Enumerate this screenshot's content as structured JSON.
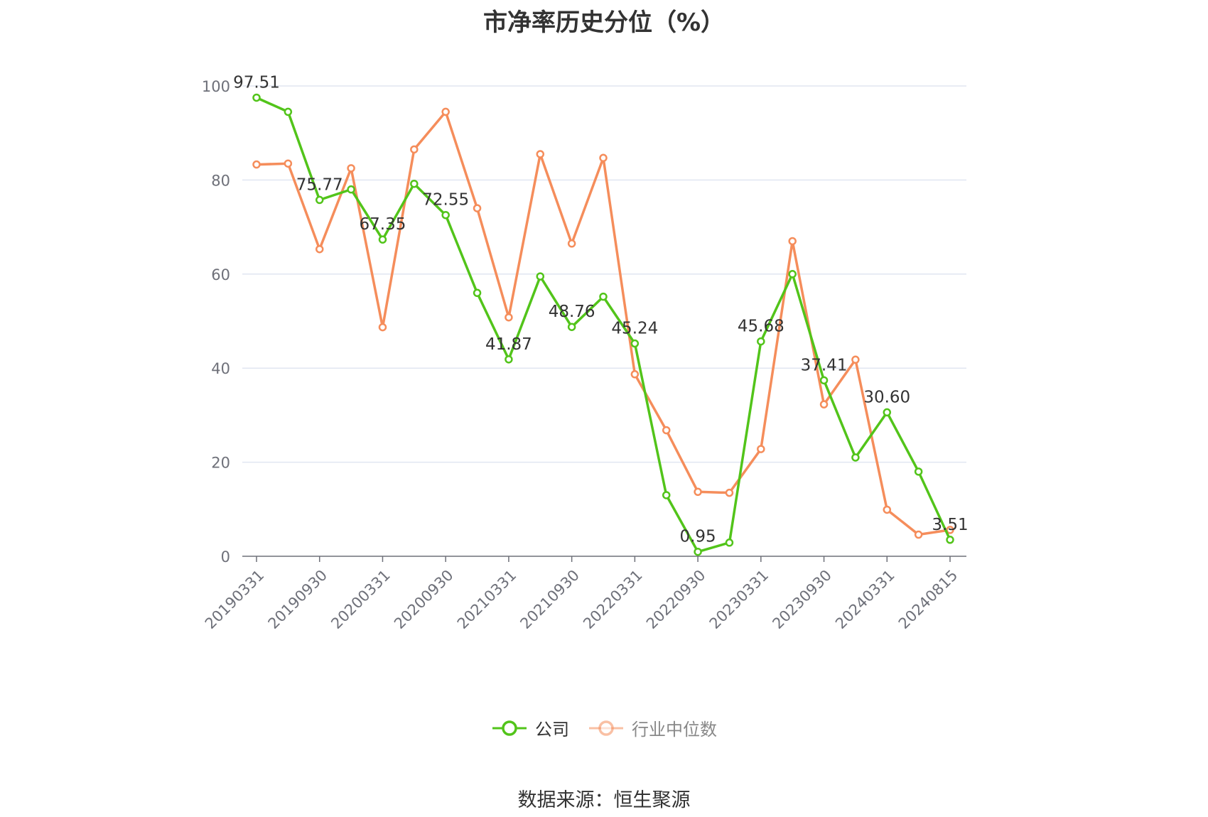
{
  "title": "市净率历史分位（%）",
  "source": "数据来源：恒生聚源",
  "colors": {
    "company": "#52c41a",
    "industry": "#f58d5b",
    "grid": "#e0e6f1",
    "axis": "#6e7079"
  },
  "legend": [
    {
      "label": "公司",
      "series": 0
    },
    {
      "label": "行业中位数",
      "series": 1
    }
  ],
  "chart_data": {
    "type": "line",
    "x_labels": [
      "20190331",
      "20190930",
      "20200331",
      "20200930",
      "20210331",
      "20210930",
      "20220331",
      "20220930",
      "20230331",
      "20230930",
      "20240331",
      "20240815"
    ],
    "points": 23,
    "label_every": 2,
    "ylim": [
      0,
      100
    ],
    "yticks": [
      0,
      20,
      40,
      60,
      80,
      100
    ],
    "grid": true,
    "legend_position": "bottom",
    "series": [
      {
        "name": "公司",
        "values": [
          97.51,
          94.5,
          75.77,
          78.0,
          67.35,
          79.2,
          72.55,
          56.0,
          41.87,
          59.5,
          48.76,
          55.2,
          45.24,
          13.0,
          0.95,
          2.9,
          45.68,
          60.0,
          37.41,
          21.0,
          30.6,
          18.0,
          3.51
        ],
        "labels": [
          "97.51",
          null,
          "75.77",
          null,
          "67.35",
          null,
          "72.55",
          null,
          "41.87",
          null,
          "48.76",
          null,
          "45.24",
          null,
          "0.95",
          null,
          "45.68",
          null,
          "37.41",
          null,
          "30.60",
          null,
          "3.51"
        ]
      },
      {
        "name": "行业中位数",
        "values": [
          83.3,
          83.5,
          65.3,
          82.5,
          48.7,
          86.5,
          94.5,
          74.0,
          50.8,
          85.5,
          66.5,
          84.7,
          38.7,
          26.8,
          13.7,
          13.5,
          22.8,
          67.0,
          32.3,
          41.8,
          9.9,
          4.6,
          5.6
        ],
        "labels": []
      }
    ]
  }
}
